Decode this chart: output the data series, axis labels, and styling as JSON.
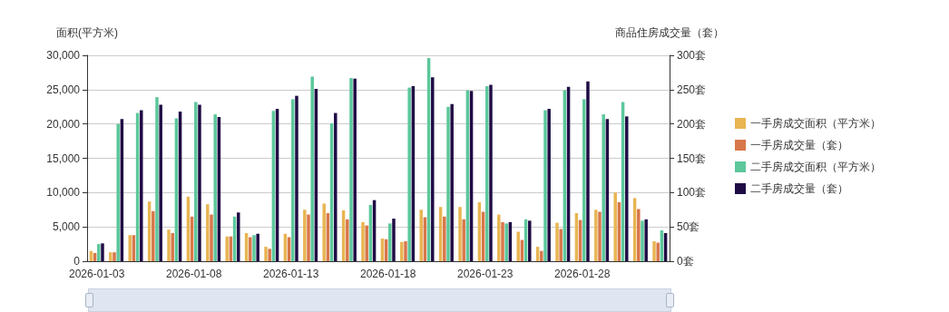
{
  "chart_data": {
    "type": "bar",
    "xlabel": null,
    "ylabel": "面积(平方米)",
    "y2label": "商品住房成交量（套）",
    "categories": [
      "2026-01-03",
      null,
      null,
      null,
      null,
      "2026-01-08",
      null,
      null,
      null,
      null,
      "2026-01-13",
      null,
      null,
      null,
      null,
      "2026-01-18",
      null,
      null,
      null,
      null,
      "2026-01-23",
      null,
      null,
      null,
      null,
      "2026-01-28",
      null,
      null,
      null,
      null
    ],
    "series": [
      {
        "name": "一手房成交面积（平方米）",
        "color": "#e8b552",
        "values": [
          1500,
          1300,
          3800,
          8700,
          4600,
          9400,
          8300,
          3600,
          4100,
          2100,
          4000,
          7500,
          8400,
          7400,
          5700,
          3300,
          2800,
          7500,
          7900,
          7900,
          8600,
          6800,
          4300,
          2100,
          5600,
          7000,
          7500,
          10000,
          9200,
          2900
        ]
      },
      {
        "name": "一手房成交量（套）",
        "color": "#d8774a",
        "axis": "y2",
        "values": [
          12,
          13,
          38,
          73,
          41,
          65,
          68,
          36,
          35,
          18,
          35,
          68,
          70,
          61,
          52,
          32,
          29,
          64,
          65,
          61,
          72,
          57,
          31,
          15,
          47,
          60,
          72,
          86,
          76,
          27
        ]
      },
      {
        "name": "二手房成交面积（平方米）",
        "color": "#5cc79b",
        "values": [
          2500,
          20000,
          21600,
          23900,
          20800,
          23200,
          21400,
          6500,
          3800,
          21900,
          23600,
          26900,
          20100,
          26700,
          8200,
          5500,
          25300,
          29600,
          22500,
          24900,
          25500,
          5500,
          6100,
          22000,
          24900,
          23600,
          21400,
          23200,
          5900,
          4500
        ]
      },
      {
        "name": "二手房成交量（套）",
        "color": "#1f0c45",
        "axis": "y2",
        "values": [
          26,
          207,
          220,
          228,
          218,
          228,
          210,
          71,
          40,
          222,
          241,
          251,
          216,
          266,
          89,
          62,
          255,
          268,
          229,
          248,
          257,
          57,
          59,
          222,
          254,
          262,
          207,
          211,
          61,
          41
        ]
      }
    ],
    "ylim": [
      0,
      30000
    ],
    "yticks": [
      0,
      {
        "value": 5000,
        "label": "5,000"
      },
      {
        "value": 10000,
        "label": "10,000"
      },
      {
        "value": 15000,
        "label": "15,000"
      },
      {
        "value": 20000,
        "label": "20,000"
      },
      {
        "value": 25000,
        "label": "25,000"
      },
      {
        "value": 30000,
        "label": "30,000"
      }
    ],
    "y2lim": [
      0,
      300
    ],
    "y2ticks": [
      {
        "value": 0,
        "label": "0套"
      },
      {
        "value": 50,
        "label": "50套"
      },
      {
        "value": 100,
        "label": "100套"
      },
      {
        "value": 150,
        "label": "150套"
      },
      {
        "value": 200,
        "label": "200套"
      },
      {
        "value": 250,
        "label": "250套"
      },
      {
        "value": 300,
        "label": "300套"
      }
    ],
    "grid": "y",
    "legend": "right"
  }
}
